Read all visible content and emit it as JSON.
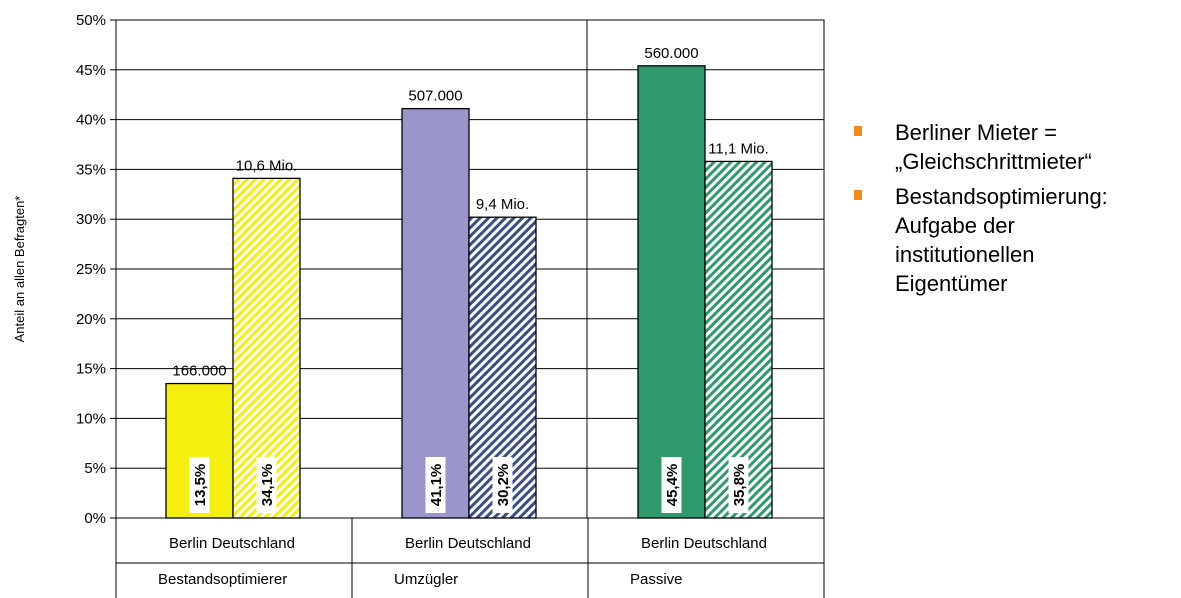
{
  "chart_data": {
    "type": "bar",
    "ylabel": "Anteil an allen Befragten*",
    "ylim": [
      0,
      50
    ],
    "y_ticks": [
      "0%",
      "5%",
      "10%",
      "15%",
      "20%",
      "25%",
      "30%",
      "35%",
      "40%",
      "45%",
      "50%"
    ],
    "groups": [
      {
        "name": "Bestandsoptimierer",
        "bars": [
          {
            "category": "Berlin",
            "value": 13.5,
            "pct_label": "13,5%",
            "count_label": "166.000",
            "color": "#f5ef10",
            "pattern": "solid"
          },
          {
            "category": "Deutschland",
            "value": 34.1,
            "pct_label": "34,1%",
            "count_label": "10,6 Mio.",
            "color": "#f5ef10",
            "pattern": "hatched"
          }
        ]
      },
      {
        "name": "Umzügler",
        "bars": [
          {
            "category": "Berlin",
            "value": 41.1,
            "pct_label": "41,1%",
            "count_label": "507.000",
            "color": "#9a96cc",
            "pattern": "solid"
          },
          {
            "category": "Deutschland",
            "value": 30.2,
            "pct_label": "30,2%",
            "count_label": "9,4 Mio.",
            "color": "#3a4c8c",
            "pattern": "hatched"
          }
        ]
      },
      {
        "name": "Passive",
        "bars": [
          {
            "category": "Berlin",
            "value": 45.4,
            "pct_label": "45,4%",
            "count_label": "560.000",
            "color": "#2e9a6c",
            "pattern": "solid"
          },
          {
            "category": "Deutschland",
            "value": 35.8,
            "pct_label": "35,8%",
            "count_label": "11,1 Mio.",
            "color": "#2e9a6c",
            "pattern": "hatched"
          }
        ]
      }
    ],
    "group_sublabel": "Berlin Deutschland",
    "grid": true
  },
  "bullets": [
    {
      "lines": [
        "Berliner Mieter =",
        "„Gleichschrittmieter“"
      ]
    },
    {
      "lines": [
        "Bestandsoptimierung:",
        "Aufgabe der",
        "institutionellen",
        "Eigentümer"
      ]
    }
  ],
  "colors": {
    "bullet": "#f28a1a",
    "grid": "#000000"
  }
}
